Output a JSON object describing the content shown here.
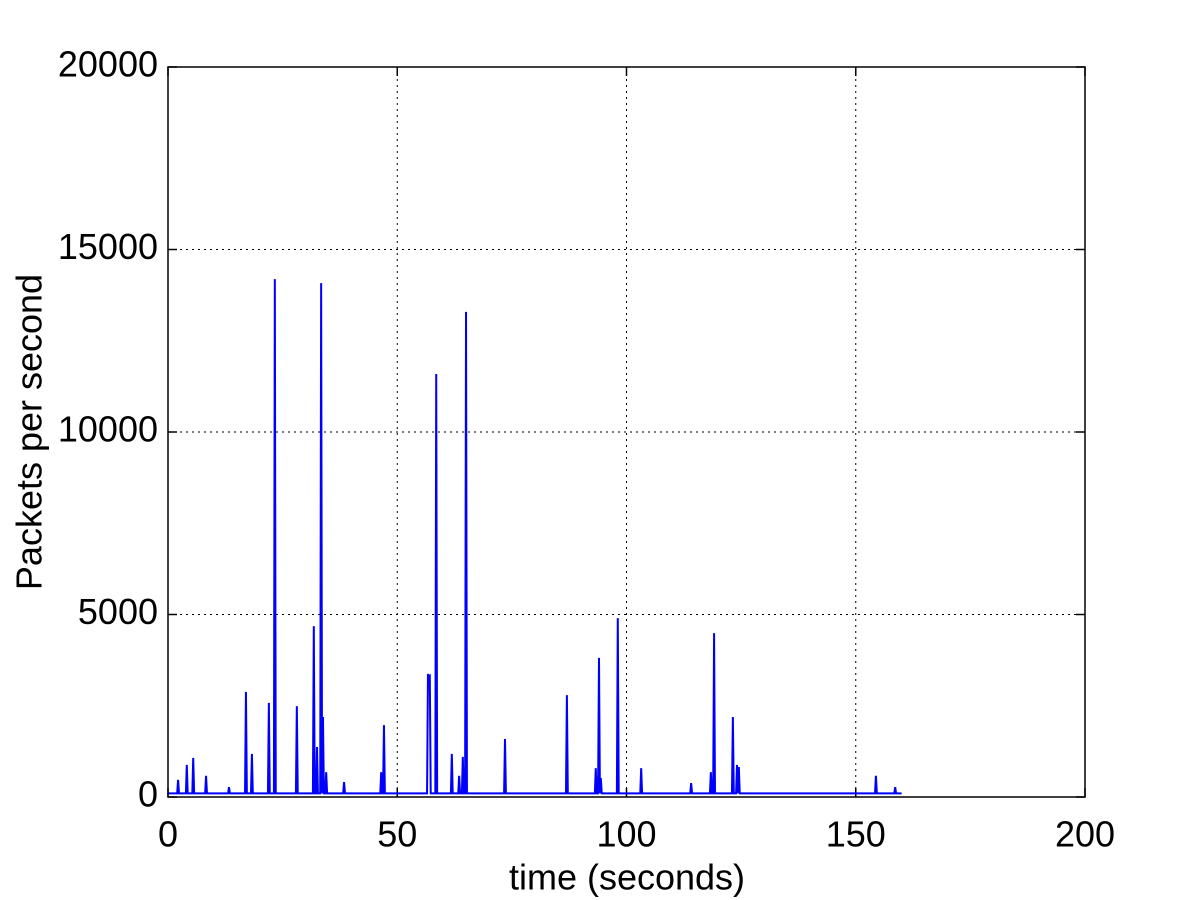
{
  "chart_data": {
    "type": "line",
    "xlabel": "time (seconds)",
    "ylabel": "Packets per second",
    "xlim": [
      0,
      200
    ],
    "xticks": [
      0,
      50,
      100,
      150,
      200
    ],
    "ylim": [
      0,
      20000
    ],
    "yticks": [
      0,
      5000,
      10000,
      15000,
      20000
    ],
    "grid": true,
    "series": [
      {
        "color": "#0000ff",
        "x": [
          0,
          2.0,
          2.2,
          2.4,
          3.9,
          4.1,
          4.3,
          5.3,
          5.5,
          5.7,
          8.1,
          8.3,
          8.5,
          13.1,
          13.3,
          13.5,
          16.8,
          17.0,
          17.2,
          18.1,
          18.3,
          18.5,
          21.8,
          22.0,
          22.2,
          23.1,
          23.3,
          23.5,
          27.9,
          28.1,
          28.3,
          31.6,
          31.8,
          32.0,
          32.3,
          32.5,
          32.7,
          33.2,
          33.4,
          33.6,
          33.8,
          34.0,
          34.3,
          34.5,
          34.7,
          38.2,
          38.4,
          38.6,
          46.3,
          46.5,
          46.7,
          46.9,
          47.1,
          47.3,
          56.5,
          56.7,
          56.9,
          57.1,
          57.3,
          58.3,
          58.5,
          58.7,
          61.7,
          61.9,
          62.1,
          63.3,
          63.5,
          63.7,
          64.1,
          64.3,
          64.5,
          64.8,
          65.0,
          65.2,
          73.3,
          73.5,
          73.7,
          86.8,
          87.0,
          87.2,
          93.1,
          93.3,
          93.5,
          93.8,
          94.0,
          94.2,
          94.4,
          94.6,
          97.9,
          98.1,
          98.3,
          103.0,
          103.2,
          103.4,
          113.9,
          114.1,
          114.3,
          118.2,
          118.4,
          118.6,
          118.9,
          119.1,
          119.3,
          123.0,
          123.2,
          123.4,
          123.9,
          124.1,
          124.3,
          124.5,
          124.7,
          154.2,
          154.4,
          154.6,
          158.4,
          158.6,
          158.8,
          160
        ],
        "values": [
          100,
          100,
          470,
          100,
          100,
          880,
          100,
          100,
          1070,
          100,
          100,
          580,
          100,
          100,
          270,
          100,
          100,
          2880,
          100,
          100,
          1180,
          100,
          100,
          2580,
          100,
          100,
          14190,
          100,
          100,
          2490,
          100,
          100,
          4680,
          100,
          100,
          1370,
          100,
          100,
          14080,
          100,
          2190,
          100,
          100,
          680,
          100,
          100,
          410,
          100,
          100,
          680,
          100,
          100,
          1970,
          100,
          100,
          3370,
          3300,
          3320,
          100,
          100,
          11590,
          100,
          100,
          1180,
          100,
          100,
          580,
          100,
          100,
          1100,
          100,
          100,
          13290,
          100,
          100,
          1590,
          100,
          100,
          2790,
          100,
          100,
          790,
          100,
          100,
          3810,
          100,
          520,
          100,
          100,
          4900,
          100,
          100,
          790,
          100,
          100,
          380,
          100,
          100,
          680,
          100,
          100,
          4490,
          100,
          100,
          2190,
          100,
          100,
          880,
          100,
          820,
          100,
          100,
          580,
          100,
          100,
          270,
          100,
          100
        ]
      }
    ]
  }
}
